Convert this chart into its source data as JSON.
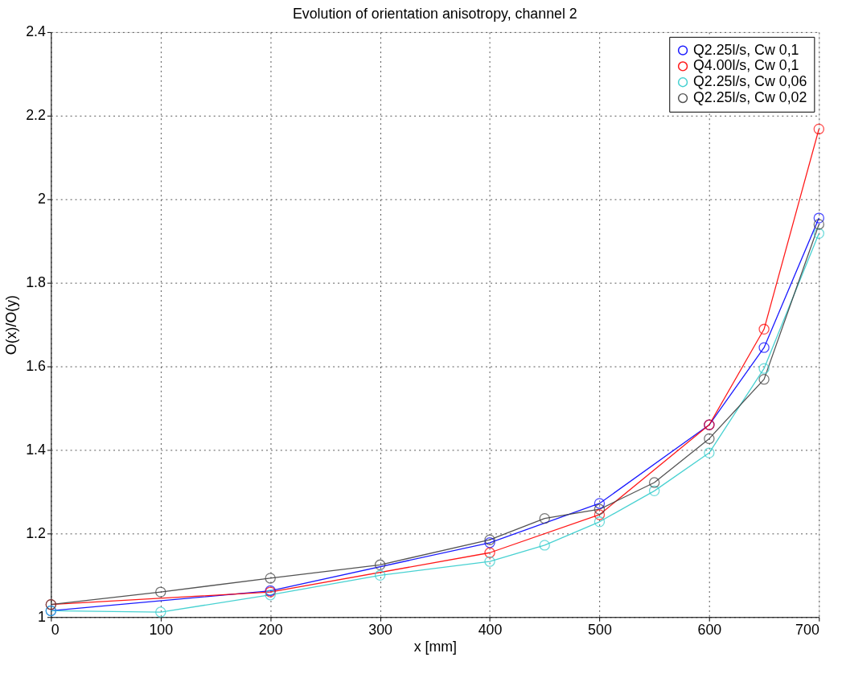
{
  "chart_data": {
    "type": "line",
    "title": "Evolution of orientation anisotropy, channel 2",
    "xlabel": "x [mm]",
    "ylabel": "O(x)/O(y)",
    "xlim": [
      0,
      700
    ],
    "xticks": [
      0,
      100,
      200,
      300,
      400,
      500,
      600,
      700
    ],
    "ylim": [
      1,
      2.4
    ],
    "yticks": [
      1,
      1.2,
      1.4,
      1.6,
      1.8,
      2,
      2.2,
      2.4
    ],
    "grid": true,
    "legend": "top right",
    "marker": "circle",
    "line_style": "solid",
    "series": [
      {
        "name": "Q2.25l/s, Cw 0,1",
        "color": "#0000ff",
        "x": [
          0,
          200,
          400,
          500,
          600,
          650,
          700
        ],
        "values": [
          1.015,
          1.063,
          1.178,
          1.272,
          1.46,
          1.645,
          1.955
        ]
      },
      {
        "name": "Q4.00l/s, Cw 0,1",
        "color": "#ff0000",
        "x": [
          0,
          200,
          400,
          500,
          600,
          650,
          700
        ],
        "values": [
          1.03,
          1.06,
          1.154,
          1.245,
          1.46,
          1.689,
          2.168
        ]
      },
      {
        "name": "Q2.25l/s, Cw 0,06",
        "color": "#33cccc",
        "x": [
          0,
          100,
          200,
          300,
          400,
          450,
          500,
          550,
          600,
          650,
          700
        ],
        "values": [
          1.015,
          1.012,
          1.053,
          1.1,
          1.133,
          1.172,
          1.228,
          1.302,
          1.393,
          1.595,
          1.918
        ]
      },
      {
        "name": "Q2.25l/s, Cw 0,02",
        "color": "#404040",
        "x": [
          0,
          100,
          200,
          300,
          400,
          450,
          500,
          550,
          600,
          650,
          700
        ],
        "values": [
          1.03,
          1.06,
          1.093,
          1.125,
          1.185,
          1.236,
          1.258,
          1.322,
          1.427,
          1.569,
          1.94
        ]
      }
    ]
  }
}
